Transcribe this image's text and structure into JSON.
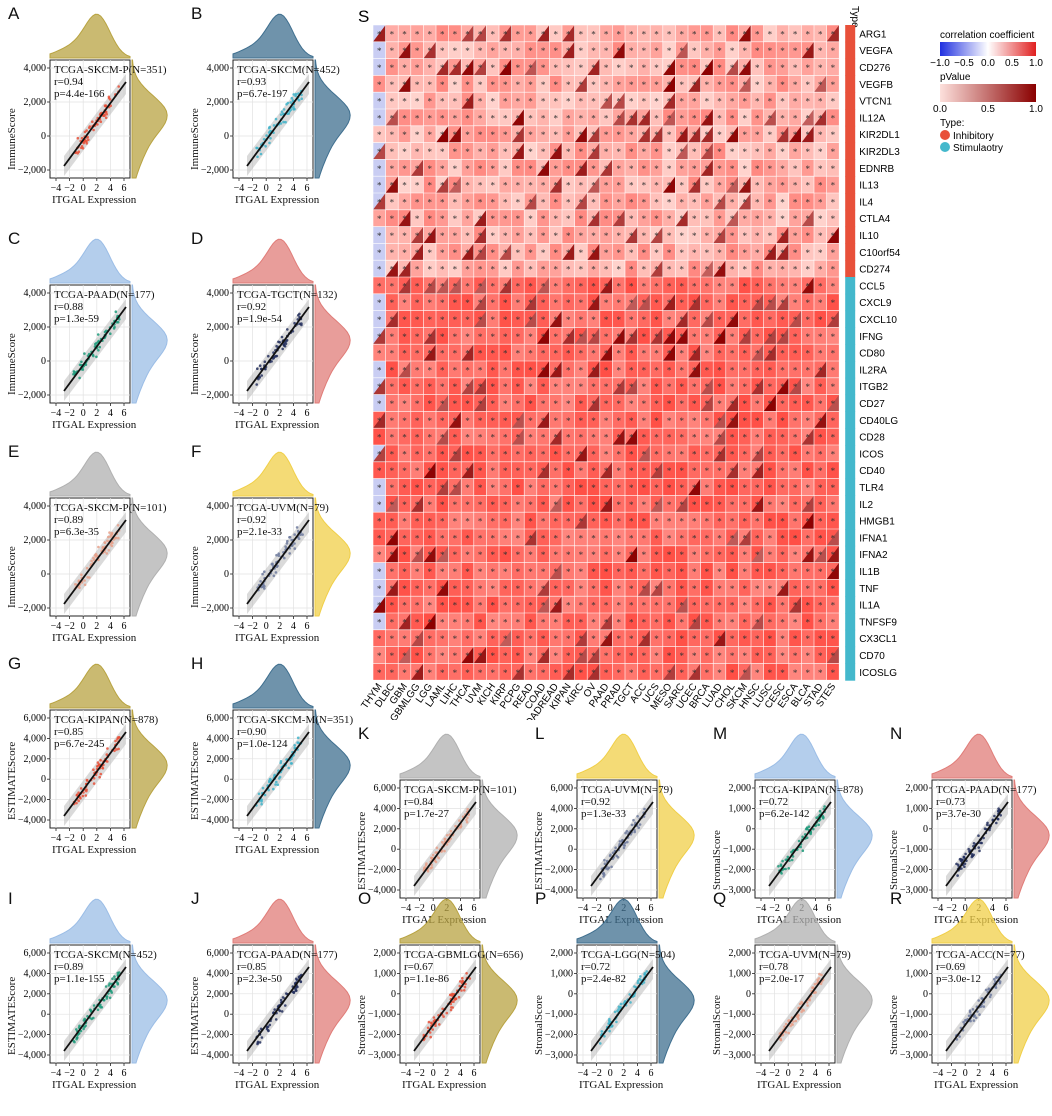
{
  "colors": {
    "olive": "#b8a341",
    "steel": "#3f6f8f",
    "lightblue": "#9bbde6",
    "salmon": "#e07c78",
    "gray": "#b0b0b0",
    "yellow": "#f0cf48",
    "inhibitory": "#e8503a",
    "stimulatory": "#44b8cc"
  },
  "scatter_panels": [
    {
      "id": "A",
      "label": "A",
      "annotation": {
        "title": "TCGA-SKCM-P(N=351)",
        "r": "r=0.94",
        "p": "p=4.4e-166"
      },
      "ylabel": "ImmuneScore",
      "xlabel": "ITGAL Expression",
      "yticks": [
        "4,000",
        "2,000",
        "0",
        "−2,000"
      ],
      "xticks": [
        "−4",
        "−2",
        "0",
        "2",
        "4",
        "6"
      ],
      "top_color": "#b8a341",
      "right_color": "#b8a341",
      "dot_color": "#e8513a"
    },
    {
      "id": "B",
      "label": "B",
      "annotation": {
        "title": "TCGA-SKCM(N=452)",
        "r": "r=0.93",
        "p": "p=6.7e-197"
      },
      "ylabel": "ImmuneScore",
      "xlabel": "ITGAL Expression",
      "yticks": [
        "4,000",
        "2,000",
        "0",
        "−2,000"
      ],
      "xticks": [
        "−4",
        "−2",
        "0",
        "2",
        "4",
        "6"
      ],
      "top_color": "#3f6f8f",
      "right_color": "#3f6f8f",
      "dot_color": "#3fb3c9"
    },
    {
      "id": "C",
      "label": "C",
      "annotation": {
        "title": "TCGA-PAAD(N=177)",
        "r": "r=0.88",
        "p": "p=1.3e-59"
      },
      "ylabel": "ImmuneScore",
      "xlabel": "ITGAL Expression",
      "yticks": [
        "4,000",
        "2,000",
        "0",
        "−2,000"
      ],
      "xticks": [
        "−4",
        "−2",
        "0",
        "2",
        "4",
        "6"
      ],
      "top_color": "#9bbde6",
      "right_color": "#9bbde6",
      "dot_color": "#1c9a7a"
    },
    {
      "id": "D",
      "label": "D",
      "annotation": {
        "title": "TCGA-TGCT(N=132)",
        "r": "r=0.92",
        "p": "p=1.9e-54"
      },
      "ylabel": "ImmuneScore",
      "xlabel": "ITGAL Expression",
      "yticks": [
        "4,000",
        "2,000",
        "0",
        "−2,000"
      ],
      "xticks": [
        "−4",
        "−2",
        "0",
        "2",
        "4",
        "6"
      ],
      "top_color": "#e07c78",
      "right_color": "#e07c78",
      "dot_color": "#25305e"
    },
    {
      "id": "E",
      "label": "E",
      "annotation": {
        "title": "TCGA-SKCM-P(N=101)",
        "r": "r=0.89",
        "p": "p=6.3e-35"
      },
      "ylabel": "ImmuneScore",
      "xlabel": "ITGAL Expression",
      "yticks": [
        "4,000",
        "2,000",
        "0",
        "−2,000"
      ],
      "xticks": [
        "−4",
        "−2",
        "0",
        "2",
        "4",
        "6"
      ],
      "top_color": "#b0b0b0",
      "right_color": "#b0b0b0",
      "dot_color": "#e8a08a"
    },
    {
      "id": "F",
      "label": "F",
      "annotation": {
        "title": "TCGA-UVM(N=79)",
        "r": "r=0.92",
        "p": "p=2.1e-33"
      },
      "ylabel": "ImmuneScore",
      "xlabel": "ITGAL Expression",
      "yticks": [
        "4,000",
        "2,000",
        "0",
        "−2,000"
      ],
      "xticks": [
        "−4",
        "−2",
        "0",
        "2",
        "4",
        "6"
      ],
      "top_color": "#f0cf48",
      "right_color": "#f0cf48",
      "dot_color": "#6d7a9e"
    },
    {
      "id": "G",
      "label": "G",
      "annotation": {
        "title": "TCGA-KIPAN(N=878)",
        "r": "r=0.85",
        "p": "p=6.7e-245"
      },
      "ylabel": "ESTIMATEScore",
      "xlabel": "ITGAL Expression",
      "yticks": [
        "6,000",
        "4,000",
        "2,000",
        "0",
        "−2,000",
        "−4,000"
      ],
      "xticks": [
        "−4",
        "−2",
        "0",
        "2",
        "4",
        "6"
      ],
      "top_color": "#b8a341",
      "right_color": "#b8a341",
      "dot_color": "#e8513a"
    },
    {
      "id": "H",
      "label": "H",
      "annotation": {
        "title": "TCGA-SKCM-M(N=351)",
        "r": "r=0.90",
        "p": "p=1.0e-124"
      },
      "ylabel": "ESTIMATEScore",
      "xlabel": "ITGAL Expression",
      "yticks": [
        "6,000",
        "4,000",
        "2,000",
        "0",
        "−2,000",
        "−4,000"
      ],
      "xticks": [
        "−4",
        "−2",
        "0",
        "2",
        "4",
        "6"
      ],
      "top_color": "#3f6f8f",
      "right_color": "#3f6f8f",
      "dot_color": "#3fb3c9"
    },
    {
      "id": "I",
      "label": "I",
      "annotation": {
        "title": "TCGA-SKCM(N=452)",
        "r": "r=0.89",
        "p": "p=1.1e-155"
      },
      "ylabel": "ESTIMATEScore",
      "xlabel": "ITGAL Expression",
      "yticks": [
        "6,000",
        "4,000",
        "2,000",
        "0",
        "−2,000",
        "−4,000"
      ],
      "xticks": [
        "−4",
        "−2",
        "0",
        "2",
        "4",
        "6"
      ],
      "top_color": "#9bbde6",
      "right_color": "#9bbde6",
      "dot_color": "#1c9a7a"
    },
    {
      "id": "J",
      "label": "J",
      "annotation": {
        "title": "TCGA-PAAD(N=177)",
        "r": "r=0.85",
        "p": "p=2.3e-50"
      },
      "ylabel": "ESTIMATEScore",
      "xlabel": "ITGAL Expression",
      "yticks": [
        "6,000",
        "4,000",
        "2,000",
        "0",
        "−2,000",
        "−4,000"
      ],
      "xticks": [
        "−4",
        "−2",
        "0",
        "2",
        "4",
        "6"
      ],
      "top_color": "#e07c78",
      "right_color": "#e07c78",
      "dot_color": "#25305e"
    },
    {
      "id": "K",
      "label": "K",
      "annotation": {
        "title": "TCGA-SKCM-P(N=101)",
        "r": "r=0.84",
        "p": "p=1.7e-27"
      },
      "ylabel": "ESTIMATEScore",
      "xlabel": "ITGAL Expression",
      "yticks": [
        "6,000",
        "4,000",
        "2,000",
        "0",
        "−2,000",
        "−4,000"
      ],
      "xticks": [
        "−4",
        "−2",
        "0",
        "2",
        "4",
        "6"
      ],
      "top_color": "#b0b0b0",
      "right_color": "#b0b0b0",
      "dot_color": "#e8a08a"
    },
    {
      "id": "L",
      "label": "L",
      "annotation": {
        "title": "TCGA-UVM(N=79)",
        "r": "r=0.92",
        "p": "p=1.3e-33"
      },
      "ylabel": "ESTIMATEScore",
      "xlabel": "ITGAL Expression",
      "yticks": [
        "6,000",
        "4,000",
        "2,000",
        "0",
        "−2,000",
        "−4,000"
      ],
      "xticks": [
        "−4",
        "−2",
        "0",
        "2",
        "4",
        "6"
      ],
      "top_color": "#f0cf48",
      "right_color": "#f0cf48",
      "dot_color": "#6d7a9e"
    },
    {
      "id": "M",
      "label": "M",
      "annotation": {
        "title": "TCGA-KIPAN(N=878)",
        "r": "r=0.72",
        "p": "p=6.2e-142"
      },
      "ylabel": "StromalScore",
      "xlabel": "ITGAL Expression",
      "yticks": [
        "2,000",
        "1,000",
        "0",
        "−1,000",
        "−2,000",
        "−3,000"
      ],
      "xticks": [
        "−4",
        "−2",
        "0",
        "2",
        "4",
        "6"
      ],
      "top_color": "#9bbde6",
      "right_color": "#9bbde6",
      "dot_color": "#1c9a7a"
    },
    {
      "id": "N",
      "label": "N",
      "annotation": {
        "title": "TCGA-PAAD(N=177)",
        "r": "r=0.73",
        "p": "p=3.7e-30"
      },
      "ylabel": "StromalScore",
      "xlabel": "ITGAL Expression",
      "yticks": [
        "2,000",
        "1,000",
        "0",
        "−1,000",
        "−2,000",
        "−3,000"
      ],
      "xticks": [
        "−4",
        "−2",
        "0",
        "2",
        "4",
        "6"
      ],
      "top_color": "#e07c78",
      "right_color": "#e07c78",
      "dot_color": "#25305e"
    },
    {
      "id": "O",
      "label": "O",
      "annotation": {
        "title": "TCGA-GBMLGG(N=656)",
        "r": "r=0.67",
        "p": "p=1.1e-86"
      },
      "ylabel": "StromalScore",
      "xlabel": "ITGAL Expression",
      "yticks": [
        "2,000",
        "1,000",
        "0",
        "−1,000",
        "−2,000",
        "−3,000"
      ],
      "xticks": [
        "−4",
        "−2",
        "0",
        "2",
        "4",
        "6"
      ],
      "top_color": "#b8a341",
      "right_color": "#b8a341",
      "dot_color": "#e8513a"
    },
    {
      "id": "P",
      "label": "P",
      "annotation": {
        "title": "TCGA-LGG(N=504)",
        "r": "r=0.72",
        "p": "p=2.4e-82"
      },
      "ylabel": "StromalScore",
      "xlabel": "ITGAL Expression",
      "yticks": [
        "2,000",
        "1,000",
        "0",
        "−1,000",
        "−2,000",
        "−3,000"
      ],
      "xticks": [
        "−4",
        "−2",
        "0",
        "2",
        "4",
        "6"
      ],
      "top_color": "#3f6f8f",
      "right_color": "#3f6f8f",
      "dot_color": "#3fb3c9"
    },
    {
      "id": "Q",
      "label": "Q",
      "annotation": {
        "title": "TCGA-UVM(N=79)",
        "r": "r=0.78",
        "p": "p=2.0e-17"
      },
      "ylabel": "StromalScore",
      "xlabel": "ITGAL Expression",
      "yticks": [
        "2,000",
        "1,000",
        "0",
        "−1,000",
        "−2,000",
        "−3,000"
      ],
      "xticks": [
        "−4",
        "−2",
        "0",
        "2",
        "4",
        "6"
      ],
      "top_color": "#b0b0b0",
      "right_color": "#b0b0b0",
      "dot_color": "#e8a08a"
    },
    {
      "id": "R",
      "label": "R",
      "annotation": {
        "title": "TCGA-ACC(N=77)",
        "r": "r=0.69",
        "p": "p=3.0e-12"
      },
      "ylabel": "StromalScore",
      "xlabel": "ITGAL Expression",
      "yticks": [
        "2,000",
        "1,000",
        "0",
        "−1,000",
        "−2,000",
        "−3,000"
      ],
      "xticks": [
        "−4",
        "−2",
        "0",
        "2",
        "4",
        "6"
      ],
      "top_color": "#f0cf48",
      "right_color": "#f0cf48",
      "dot_color": "#6d7a9e"
    }
  ],
  "heatmap": {
    "label": "S",
    "type_header": "Type",
    "genes": [
      "ARG1",
      "VEGFA",
      "CD276",
      "VEGFB",
      "VTCN1",
      "IL12A",
      "KIR2DL1",
      "KIR2DL3",
      "EDNRB",
      "IL13",
      "IL4",
      "CTLA4",
      "IL10",
      "C10orf54",
      "CD274",
      "CCL5",
      "CXCL9",
      "CXCL10",
      "IFNG",
      "CD80",
      "IL2RA",
      "ITGB2",
      "CD27",
      "CD40LG",
      "CD28",
      "ICOS",
      "CD40",
      "TLR4",
      "IL2",
      "HMGB1",
      "IFNA1",
      "IFNA2",
      "IL1B",
      "TNF",
      "IL1A",
      "TNFSF9",
      "CX3CL1",
      "CD70",
      "ICOSLG"
    ],
    "gene_types": [
      "Inhibitory",
      "Inhibitory",
      "Inhibitory",
      "Inhibitory",
      "Inhibitory",
      "Inhibitory",
      "Inhibitory",
      "Inhibitory",
      "Inhibitory",
      "Inhibitory",
      "Inhibitory",
      "Inhibitory",
      "Inhibitory",
      "Inhibitory",
      "Inhibitory",
      "Stimulaotry",
      "Stimulaotry",
      "Stimulaotry",
      "Stimulaotry",
      "Stimulaotry",
      "Stimulaotry",
      "Stimulaotry",
      "Stimulaotry",
      "Stimulaotry",
      "Stimulaotry",
      "Stimulaotry",
      "Stimulaotry",
      "Stimulaotry",
      "Stimulaotry",
      "Stimulaotry",
      "Stimulaotry",
      "Stimulaotry",
      "Stimulaotry",
      "Stimulaotry",
      "Stimulaotry",
      "Stimulaotry",
      "Stimulaotry",
      "Stimulaotry",
      "Stimulaotry"
    ],
    "cancers": [
      "THYM",
      "DLBC",
      "GBM",
      "GBMLGG",
      "LGG",
      "LAML",
      "LIHC",
      "THCA",
      "UVM",
      "KICH",
      "KIRP",
      "PCPG",
      "READ",
      "COAD",
      "COADREAD",
      "KIPAN",
      "KIRC",
      "OV",
      "PAAD",
      "PRAD",
      "TGCT",
      "ACC",
      "UCS",
      "MESO",
      "SARC",
      "UCEC",
      "BRCA",
      "LUAD",
      "CHOL",
      "SKCM",
      "HNSC",
      "LUSC",
      "CESC",
      "ESCA",
      "BLCA",
      "STAD",
      "STES"
    ],
    "star": "*",
    "legend": {
      "corr_title": "correlation coefficient",
      "corr_ticks": [
        "−1.0",
        "−0.5",
        "0.0",
        "0.5",
        "1.0"
      ],
      "p_title": "pValue",
      "p_ticks": [
        "0.0",
        "0.5",
        "1.0"
      ],
      "type_title": "Type:",
      "type_items": [
        {
          "name": "Inhibitory",
          "color": "#e8503a"
        },
        {
          "name": "Stimulaotry",
          "color": "#44b8cc"
        }
      ]
    }
  }
}
